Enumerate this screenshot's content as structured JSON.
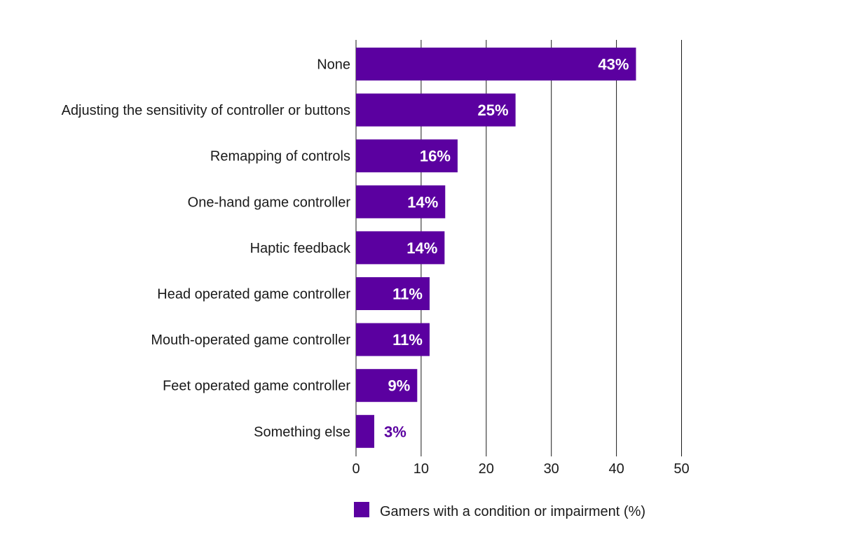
{
  "chart_data": {
    "type": "bar",
    "orientation": "horizontal",
    "categories": [
      "None",
      "Adjusting the sensitivity of controller or buttons",
      "Remapping of controls",
      "One-hand game controller",
      "Haptic feedback",
      "Head operated game controller",
      "Mouth-operated game controller",
      "Feet operated game controller",
      "Something else"
    ],
    "series": [
      {
        "name": "Gamers with a condition or impairment (%)",
        "values": [
          43,
          24.5,
          15.6,
          13.7,
          13.6,
          11.3,
          11.3,
          9.4,
          2.8
        ],
        "labels": [
          "43%",
          "25%",
          "16%",
          "14%",
          "14%",
          "11%",
          "11%",
          "9%",
          "3%"
        ],
        "color": "#5b00a0"
      }
    ],
    "xlim": [
      0,
      50
    ],
    "xticks": [
      0,
      10,
      20,
      30,
      40,
      50
    ],
    "xtick_labels": [
      "0",
      "10",
      "20",
      "30",
      "40",
      "50"
    ],
    "grid": true,
    "legend_position": "bottom",
    "title": "",
    "xlabel": "",
    "ylabel": ""
  },
  "colors": {
    "bar": "#5b00a0",
    "label_inside": "#ffffff",
    "label_outside": "#5b00a0",
    "gridline": "#1a1a1a"
  }
}
